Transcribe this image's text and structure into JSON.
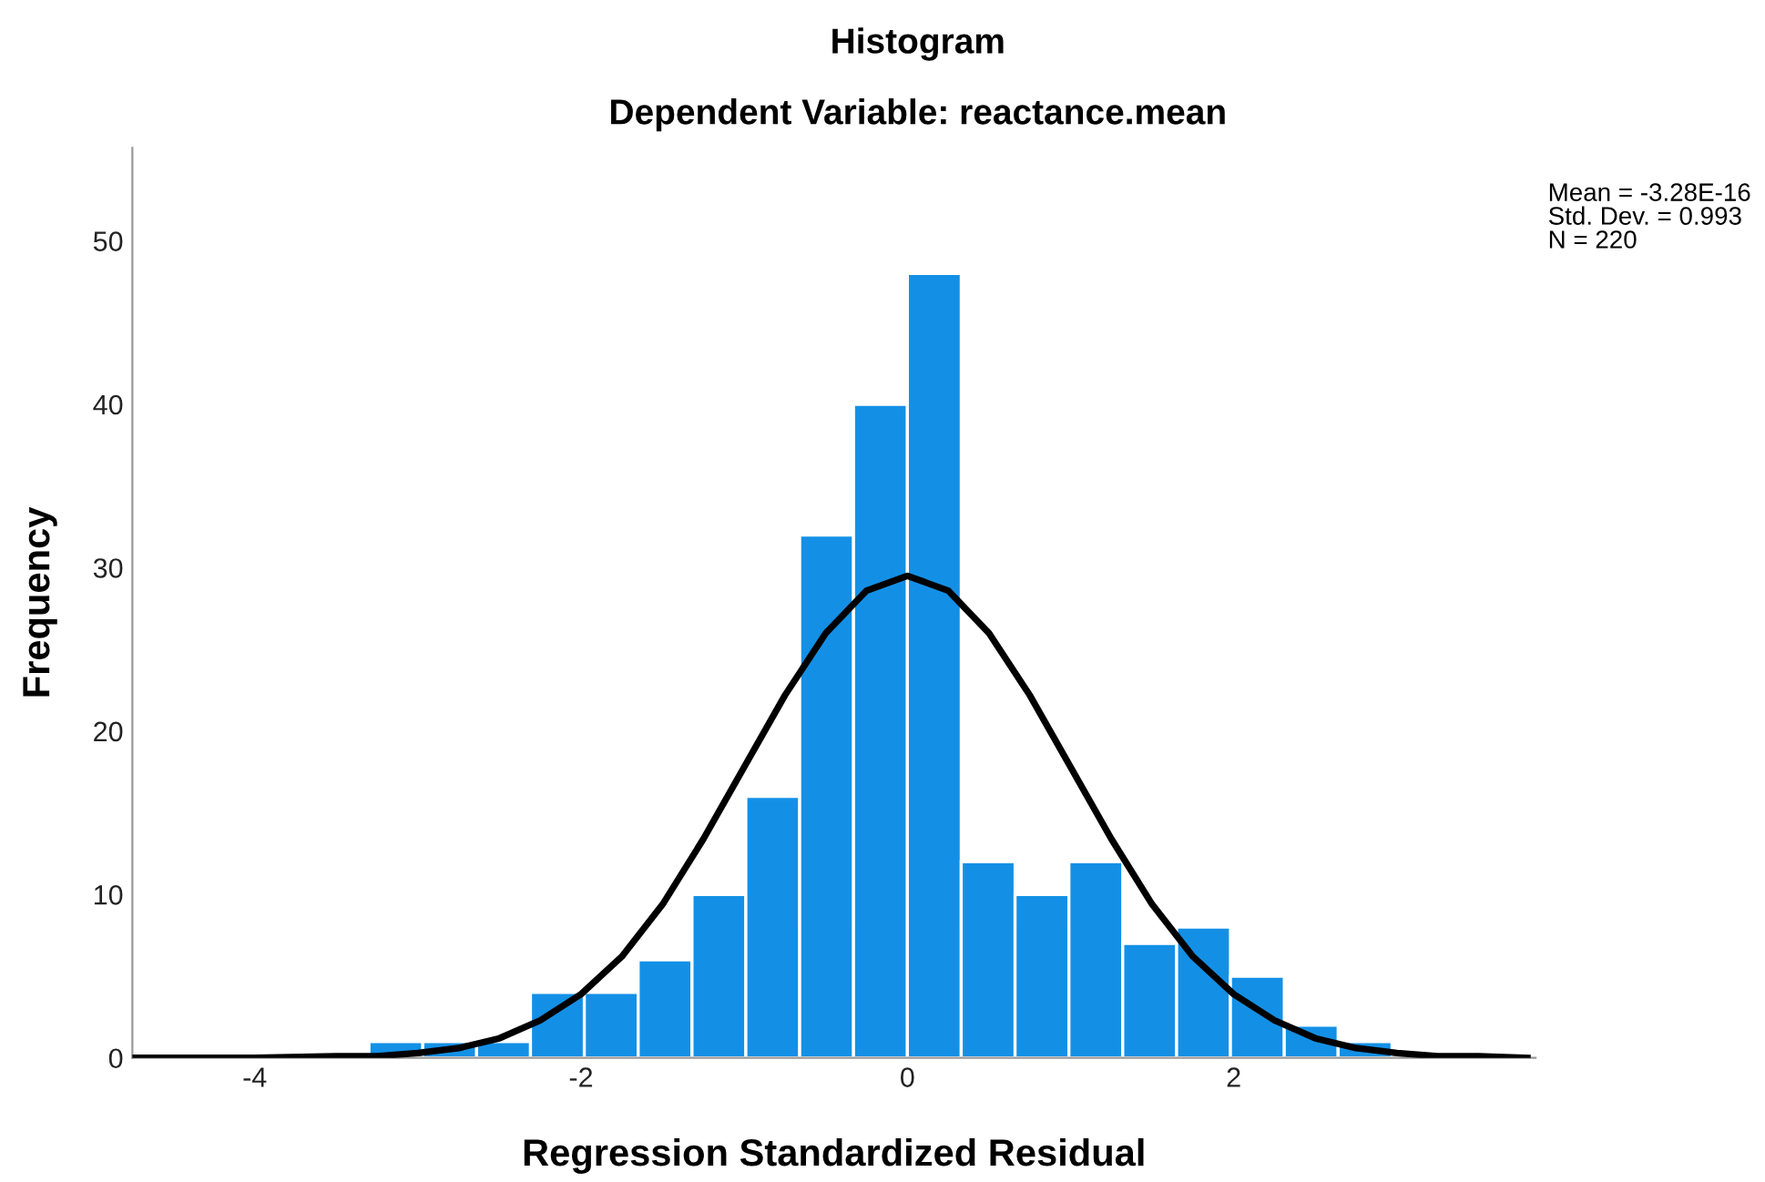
{
  "chart_data": {
    "type": "histogram",
    "title": "Histogram",
    "subtitle": "Dependent Variable: reactance.mean",
    "xlabel": "Regression Standardized Residual",
    "ylabel": "Frequency",
    "bins": [
      -3.3,
      -2.97,
      -2.64,
      -2.31,
      -1.98,
      -1.65,
      -1.32,
      -0.99,
      -0.66,
      -0.33,
      0,
      0.33,
      0.66,
      0.99,
      1.32,
      1.65,
      1.98,
      2.31,
      2.64,
      2.97
    ],
    "values": [
      1,
      1,
      1,
      4,
      4,
      6,
      10,
      16,
      32,
      40,
      48,
      12,
      10,
      12,
      7,
      8,
      5,
      2,
      1
    ],
    "color": "#1390e6",
    "series": [
      {
        "type": "line",
        "color": "#000000",
        "x": [
          -4.75,
          -4,
          -3.5,
          -3.25,
          -3,
          -2.75,
          -2.5,
          -2.25,
          -2,
          -1.75,
          -1.5,
          -1.25,
          -1,
          -0.75,
          -0.5,
          -0.25,
          0,
          0.25,
          0.5,
          0.75,
          1,
          1.25,
          1.5,
          1.75,
          2,
          2.25,
          2.5,
          2.75,
          3,
          3.25,
          3.5,
          3.8
        ],
        "values": [
          0,
          0,
          0.1,
          0.1,
          0.3,
          0.6,
          1.2,
          2.3,
          3.9,
          6.2,
          9.4,
          13.4,
          17.8,
          22.2,
          26.0,
          28.6,
          29.5,
          28.6,
          26.0,
          22.2,
          17.8,
          13.4,
          9.4,
          6.2,
          3.9,
          2.3,
          1.2,
          0.6,
          0.3,
          0.1,
          0.1,
          0
        ]
      }
    ],
    "xlim": [
      -4.75,
      3.85
    ],
    "ylim": [
      0,
      55.7
    ],
    "xticks": [
      -4,
      -2,
      0,
      2
    ],
    "yticks": [
      0,
      10,
      20,
      30,
      40,
      50
    ],
    "grid": false,
    "legend": false,
    "annotations": [
      "Mean = -3.28E-16",
      "Std. Dev. = 0.993",
      "N = 220"
    ]
  }
}
